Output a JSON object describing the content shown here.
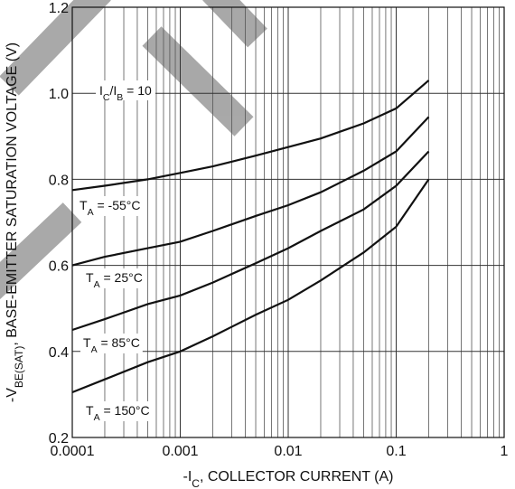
{
  "chart_data": {
    "type": "line",
    "x_log": true,
    "x_label": [
      {
        "text": "-I"
      },
      {
        "text": "C",
        "sub": true
      },
      {
        "text": ", COLLECTOR CURRENT (A)"
      }
    ],
    "y_label": [
      {
        "text": "-V"
      },
      {
        "text": "BE(SAT)",
        "sub": true
      },
      {
        "text": ", BASE-EMITTER SATURATION VOLTAGE (V)"
      }
    ],
    "annotation": [
      {
        "text": "I"
      },
      {
        "text": "C",
        "sub": true
      },
      {
        "text": "/I"
      },
      {
        "text": "B",
        "sub": true
      },
      {
        "text": " = 10"
      }
    ],
    "x": [
      0.0001,
      0.0002,
      0.0005,
      0.001,
      0.002,
      0.005,
      0.01,
      0.02,
      0.05,
      0.1,
      0.2
    ],
    "series": [
      {
        "label": [
          {
            "text": "T"
          },
          {
            "text": "A",
            "sub": true
          },
          {
            "text": " = -55°C"
          }
        ],
        "color": "#111",
        "values": [
          0.775,
          0.785,
          0.8,
          0.815,
          0.83,
          0.855,
          0.875,
          0.895,
          0.93,
          0.965,
          1.03
        ]
      },
      {
        "label": [
          {
            "text": "T"
          },
          {
            "text": "A",
            "sub": true
          },
          {
            "text": " = 25°C"
          }
        ],
        "color": "#111",
        "values": [
          0.6,
          0.62,
          0.64,
          0.655,
          0.68,
          0.715,
          0.74,
          0.77,
          0.82,
          0.865,
          0.945
        ]
      },
      {
        "label": [
          {
            "text": "T"
          },
          {
            "text": "A",
            "sub": true
          },
          {
            "text": " = 85°C"
          }
        ],
        "color": "#111",
        "values": [
          0.45,
          0.475,
          0.51,
          0.53,
          0.56,
          0.605,
          0.64,
          0.68,
          0.73,
          0.785,
          0.865
        ]
      },
      {
        "label": [
          {
            "text": "T"
          },
          {
            "text": "A",
            "sub": true
          },
          {
            "text": " = 150°C"
          }
        ],
        "color": "#111",
        "values": [
          0.305,
          0.335,
          0.375,
          0.4,
          0.435,
          0.485,
          0.52,
          0.565,
          0.63,
          0.69,
          0.8
        ]
      }
    ],
    "xlim": [
      0.0001,
      1
    ],
    "xticks": [
      0.0001,
      0.001,
      0.01,
      0.1,
      1
    ],
    "ylim": [
      0.2,
      1.2
    ],
    "yticks": [
      0.2,
      0.4,
      0.6,
      0.8,
      {
        "value": 1,
        "label": "1.0"
      },
      1.2
    ],
    "grid": true
  }
}
